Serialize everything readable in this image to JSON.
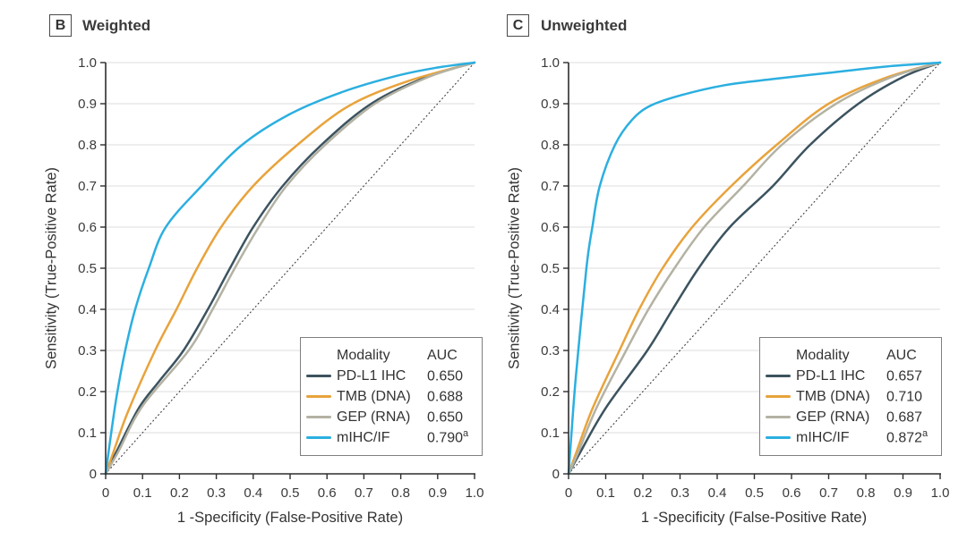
{
  "figure": {
    "panels": [
      {
        "letter": "B",
        "title": "Weighted",
        "x_axis_label": "1 -Specificity (False-Positive Rate)",
        "y_axis_label": "Sensitivity (True-Positive Rate)",
        "legend": {
          "header_modality": "Modality",
          "header_auc": "AUC",
          "rows": [
            {
              "label": "PD-L1 IHC",
              "auc": "0.650",
              "auc_sup": "",
              "color": "#3c535f"
            },
            {
              "label": "TMB (DNA)",
              "auc": "0.688",
              "auc_sup": "",
              "color": "#e8a33c"
            },
            {
              "label": "GEP (RNA)",
              "auc": "0.650",
              "auc_sup": "",
              "color": "#b4b2a3"
            },
            {
              "label": "mIHC/IF",
              "auc": "0.790",
              "auc_sup": "a",
              "color": "#2bafe0"
            }
          ]
        }
      },
      {
        "letter": "C",
        "title": "Unweighted",
        "x_axis_label": "1 -Specificity (False-Positive Rate)",
        "y_axis_label": "Sensitivity (True-Positive Rate)",
        "legend": {
          "header_modality": "Modality",
          "header_auc": "AUC",
          "rows": [
            {
              "label": "PD-L1 IHC",
              "auc": "0.657",
              "auc_sup": "",
              "color": "#3c535f"
            },
            {
              "label": "TMB (DNA)",
              "auc": "0.710",
              "auc_sup": "",
              "color": "#e8a33c"
            },
            {
              "label": "GEP (RNA)",
              "auc": "0.687",
              "auc_sup": "",
              "color": "#b4b2a3"
            },
            {
              "label": "mIHC/IF",
              "auc": "0.872",
              "auc_sup": "a",
              "color": "#2bafe0"
            }
          ]
        }
      }
    ]
  },
  "chart_data": [
    {
      "type": "line",
      "subtype": "roc-curves",
      "panel": "B",
      "title": "Weighted",
      "xlabel": "1 -Specificity (False-Positive Rate)",
      "ylabel": "Sensitivity (True-Positive Rate)",
      "xlim": [
        0,
        1
      ],
      "ylim": [
        0,
        1
      ],
      "tick_values": [
        0,
        0.1,
        0.2,
        0.3,
        0.4,
        0.5,
        0.6,
        0.7,
        0.8,
        0.9,
        1.0
      ],
      "tick_labels": [
        "0",
        "0.1",
        "0.2",
        "0.3",
        "0.4",
        "0.5",
        "0.6",
        "0.7",
        "0.8",
        "0.9",
        "1.0"
      ],
      "grid": "horizontal-only",
      "gridline_color": "#e4e4e4",
      "diagonal_reference_line": true,
      "legend_position": "lower-right",
      "series": [
        {
          "name": "PD-L1 IHC",
          "auc": 0.65,
          "color": "#3c535f",
          "points": [
            [
              0,
              0
            ],
            [
              0.03,
              0.055
            ],
            [
              0.09,
              0.16
            ],
            [
              0.145,
              0.225
            ],
            [
              0.211,
              0.3
            ],
            [
              0.277,
              0.4
            ],
            [
              0.337,
              0.5
            ],
            [
              0.4,
              0.6
            ],
            [
              0.48,
              0.7
            ],
            [
              0.585,
              0.8
            ],
            [
              0.72,
              0.9
            ],
            [
              0.87,
              0.965
            ],
            [
              1,
              1
            ]
          ]
        },
        {
          "name": "TMB (DNA)",
          "auc": 0.688,
          "color": "#e8a33c",
          "points": [
            [
              0,
              0
            ],
            [
              0.02,
              0.05
            ],
            [
              0.06,
              0.15
            ],
            [
              0.134,
              0.3
            ],
            [
              0.192,
              0.4
            ],
            [
              0.248,
              0.5
            ],
            [
              0.313,
              0.6
            ],
            [
              0.4,
              0.7
            ],
            [
              0.52,
              0.8
            ],
            [
              0.66,
              0.895
            ],
            [
              0.82,
              0.955
            ],
            [
              1,
              1
            ]
          ]
        },
        {
          "name": "GEP (RNA)",
          "auc": 0.65,
          "color": "#b4b2a3",
          "points": [
            [
              0,
              0
            ],
            [
              0.035,
              0.055
            ],
            [
              0.1,
              0.165
            ],
            [
              0.225,
              0.3
            ],
            [
              0.29,
              0.4
            ],
            [
              0.35,
              0.5
            ],
            [
              0.415,
              0.6
            ],
            [
              0.49,
              0.7
            ],
            [
              0.595,
              0.8
            ],
            [
              0.73,
              0.9
            ],
            [
              0.875,
              0.965
            ],
            [
              1,
              1
            ]
          ]
        },
        {
          "name": "mIHC/IF",
          "auc": 0.79,
          "auc_note": "a",
          "color": "#2bafe0",
          "points": [
            [
              0,
              0
            ],
            [
              0.012,
              0.08
            ],
            [
              0.03,
              0.19
            ],
            [
              0.053,
              0.3
            ],
            [
              0.08,
              0.4
            ],
            [
              0.117,
              0.5
            ],
            [
              0.163,
              0.6
            ],
            [
              0.26,
              0.7
            ],
            [
              0.37,
              0.8
            ],
            [
              0.5,
              0.875
            ],
            [
              0.64,
              0.928
            ],
            [
              0.79,
              0.968
            ],
            [
              0.9,
              0.988
            ],
            [
              1,
              1
            ]
          ]
        }
      ]
    },
    {
      "type": "line",
      "subtype": "roc-curves",
      "panel": "C",
      "title": "Unweighted",
      "xlabel": "1 -Specificity (False-Positive Rate)",
      "ylabel": "Sensitivity (True-Positive Rate)",
      "xlim": [
        0,
        1
      ],
      "ylim": [
        0,
        1
      ],
      "tick_values": [
        0,
        0.1,
        0.2,
        0.3,
        0.4,
        0.5,
        0.6,
        0.7,
        0.8,
        0.9,
        1.0
      ],
      "tick_labels": [
        "0",
        "0.1",
        "0.2",
        "0.3",
        "0.4",
        "0.5",
        "0.6",
        "0.7",
        "0.8",
        "0.9",
        "1.0"
      ],
      "grid": "horizontal-only",
      "gridline_color": "#e4e4e4",
      "diagonal_reference_line": true,
      "legend_position": "lower-right",
      "series": [
        {
          "name": "PD-L1 IHC",
          "auc": 0.657,
          "color": "#3c535f",
          "points": [
            [
              0,
              0
            ],
            [
              0.03,
              0.05
            ],
            [
              0.1,
              0.16
            ],
            [
              0.212,
              0.3
            ],
            [
              0.28,
              0.4
            ],
            [
              0.35,
              0.5
            ],
            [
              0.434,
              0.6
            ],
            [
              0.55,
              0.7
            ],
            [
              0.65,
              0.8
            ],
            [
              0.78,
              0.9
            ],
            [
              0.9,
              0.965
            ],
            [
              1,
              1
            ]
          ]
        },
        {
          "name": "TMB (DNA)",
          "auc": 0.71,
          "color": "#e8a33c",
          "points": [
            [
              0,
              0
            ],
            [
              0.02,
              0.05
            ],
            [
              0.065,
              0.16
            ],
            [
              0.137,
              0.3
            ],
            [
              0.19,
              0.4
            ],
            [
              0.253,
              0.5
            ],
            [
              0.333,
              0.6
            ],
            [
              0.438,
              0.7
            ],
            [
              0.56,
              0.8
            ],
            [
              0.7,
              0.9
            ],
            [
              0.86,
              0.965
            ],
            [
              1,
              1
            ]
          ]
        },
        {
          "name": "GEP (RNA)",
          "auc": 0.687,
          "color": "#b4b2a3",
          "points": [
            [
              0,
              0
            ],
            [
              0.025,
              0.05
            ],
            [
              0.075,
              0.16
            ],
            [
              0.155,
              0.3
            ],
            [
              0.215,
              0.4
            ],
            [
              0.285,
              0.5
            ],
            [
              0.365,
              0.6
            ],
            [
              0.47,
              0.7
            ],
            [
              0.574,
              0.8
            ],
            [
              0.72,
              0.9
            ],
            [
              0.87,
              0.965
            ],
            [
              1,
              1
            ]
          ]
        },
        {
          "name": "mIHC/IF",
          "auc": 0.872,
          "auc_note": "a",
          "color": "#2bafe0",
          "points": [
            [
              0,
              0
            ],
            [
              0.008,
              0.1
            ],
            [
              0.02,
              0.24
            ],
            [
              0.048,
              0.5
            ],
            [
              0.064,
              0.6
            ],
            [
              0.084,
              0.7
            ],
            [
              0.125,
              0.8
            ],
            [
              0.17,
              0.86
            ],
            [
              0.22,
              0.895
            ],
            [
              0.3,
              0.92
            ],
            [
              0.42,
              0.945
            ],
            [
              0.55,
              0.96
            ],
            [
              0.7,
              0.975
            ],
            [
              0.85,
              0.99
            ],
            [
              1,
              1
            ]
          ]
        }
      ]
    }
  ]
}
